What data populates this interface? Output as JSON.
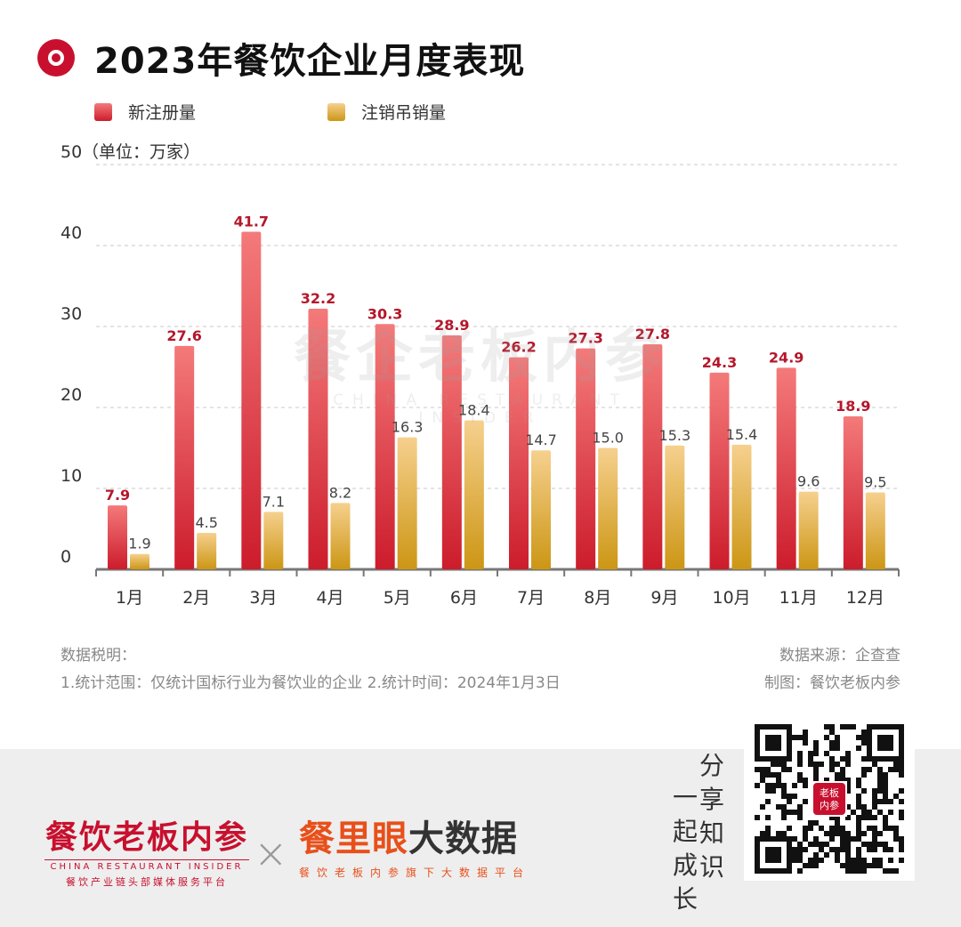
{
  "title": "2023年餐饮企业月度表现",
  "legend": {
    "new": "新注册量",
    "cancel": "注销吊销量"
  },
  "colors": {
    "new_top": "#f47a7a",
    "new_bottom": "#cc1c2c",
    "cancel_top": "#f6d08e",
    "cancel_bottom": "#cc9614",
    "label_new": "#b5172b",
    "label_cancel": "#444444"
  },
  "watermark": {
    "cn": "餐企老板内参",
    "en": "CHINA RESTAURANT INSIDER"
  },
  "chart_data": {
    "type": "bar",
    "categories": [
      "1月",
      "2月",
      "3月",
      "4月",
      "5月",
      "6月",
      "7月",
      "8月",
      "9月",
      "10月",
      "11月",
      "12月"
    ],
    "series": [
      {
        "name": "新注册量",
        "values": [
          7.9,
          27.6,
          41.7,
          32.2,
          30.3,
          28.9,
          26.2,
          27.3,
          27.8,
          24.3,
          24.9,
          18.9
        ]
      },
      {
        "name": "注销吊销量",
        "values": [
          1.9,
          4.5,
          7.1,
          8.2,
          16.3,
          18.4,
          14.7,
          15.0,
          15.3,
          15.4,
          9.6,
          9.5
        ]
      }
    ],
    "ylim": [
      0,
      50
    ],
    "yticks": [
      "0",
      "10",
      "20",
      "30",
      "40",
      "50"
    ],
    "y_unit_label": "（单位：万家）",
    "grid": true,
    "legend_position": "top-left"
  },
  "notes": {
    "heading": "数据税明：",
    "line": "1.统计范围：仅统计国标行业为餐饮业的企业 2.统计时间：2024年1月3日"
  },
  "source": {
    "data_source": "数据来源：企查查",
    "made_by": "制图：餐饮老板内参"
  },
  "footer": {
    "brand1_cn": "餐饮老板内参",
    "brand1_en": "CHINA RESTAURANT INSIDER",
    "brand1_sub": "餐饮产业链头部媒体服务平台",
    "brand2_red": "餐里眼",
    "brand2_dark": "大数据",
    "brand2_sub": "餐饮老板内参旗下大数据平台",
    "slogan_col1": [
      "一",
      "起",
      "成",
      "长"
    ],
    "slogan_col2": [
      "分",
      "享",
      "知",
      "识"
    ],
    "qr_badge": "老板内参"
  }
}
